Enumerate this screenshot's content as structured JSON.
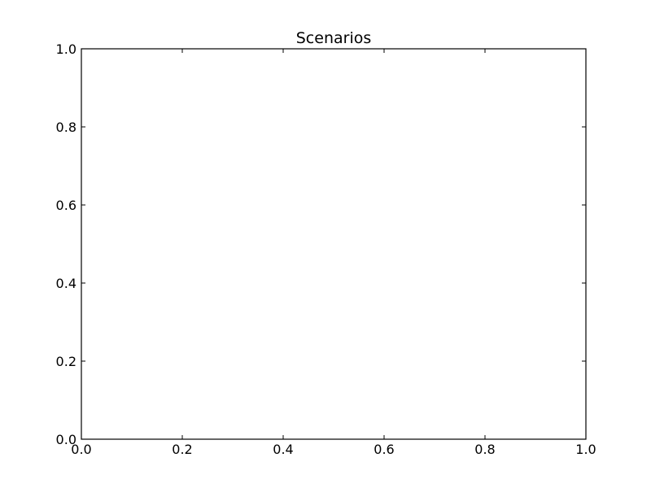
{
  "chart_data": {
    "type": "line",
    "title": "Scenarios",
    "xlabel": "",
    "ylabel": "",
    "xlim": [
      0.0,
      1.0
    ],
    "ylim": [
      0.0,
      1.0
    ],
    "x_ticks": [
      "0.0",
      "0.2",
      "0.4",
      "0.6",
      "0.8",
      "1.0"
    ],
    "y_ticks": [
      "0.0",
      "0.2",
      "0.4",
      "0.6",
      "0.8",
      "1.0"
    ],
    "series": [],
    "grid": false,
    "legend": "none",
    "colors": {
      "background": "#ffffff",
      "axes": "#000000",
      "text": "#000000"
    }
  }
}
